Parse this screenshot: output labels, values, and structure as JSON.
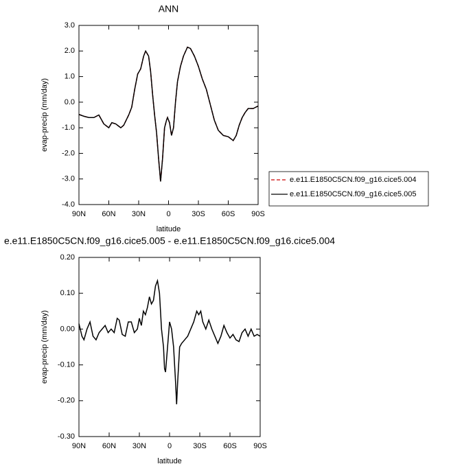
{
  "chart_data": [
    {
      "type": "line",
      "title": "ANN",
      "xlabel": "latitude",
      "ylabel": "evap-precip (mm/day)",
      "xlim": [
        90,
        -90
      ],
      "xticks": [
        {
          "value": 90,
          "label": "90N"
        },
        {
          "value": 60,
          "label": "60N"
        },
        {
          "value": 30,
          "label": "30N"
        },
        0,
        {
          "value": -30,
          "label": "30S"
        },
        {
          "value": -60,
          "label": "60S"
        },
        {
          "value": -90,
          "label": "90S"
        }
      ],
      "ylim": [
        -4,
        3
      ],
      "yticks": [
        {
          "value": -4,
          "label": "-4.0"
        },
        {
          "value": -3,
          "label": "-3.0"
        },
        {
          "value": -2,
          "label": "-2.0"
        },
        {
          "value": -1,
          "label": "-1.0"
        },
        {
          "value": 0,
          "label": "0.0"
        },
        {
          "value": 1,
          "label": "1.0"
        },
        {
          "value": 2,
          "label": "2.0"
        },
        {
          "value": 3,
          "label": "3.0"
        }
      ],
      "legend": "right",
      "x": [
        90,
        85,
        80,
        75,
        70,
        65,
        60,
        57,
        53,
        48,
        45,
        40,
        37,
        34,
        31,
        28,
        25,
        23,
        20,
        18,
        16,
        14,
        12,
        10,
        8,
        6,
        4,
        2,
        1,
        -1,
        -3,
        -5,
        -7,
        -9,
        -12,
        -15,
        -19,
        -22,
        -26,
        -30,
        -34,
        -38,
        -42,
        -46,
        -50,
        -55,
        -60,
        -65,
        -68,
        -71,
        -74,
        -77,
        -80,
        -85,
        -90
      ],
      "series": [
        {
          "name": "e.e11.E1850C5CN.f09_g16.cice5.004",
          "color": "#cc0000",
          "linestyle": "dashed",
          "values": [
            -0.48,
            -0.55,
            -0.6,
            -0.6,
            -0.5,
            -0.85,
            -1.0,
            -0.8,
            -0.85,
            -1.0,
            -0.9,
            -0.5,
            -0.2,
            0.5,
            1.1,
            1.3,
            1.8,
            2.0,
            1.8,
            1.2,
            0.3,
            -0.5,
            -1.2,
            -2.2,
            -3.1,
            -2.2,
            -1.0,
            -0.7,
            -0.6,
            -0.8,
            -1.3,
            -1.0,
            0.0,
            0.8,
            1.4,
            1.8,
            2.15,
            2.1,
            1.8,
            1.4,
            0.9,
            0.5,
            -0.1,
            -0.7,
            -1.1,
            -1.3,
            -1.35,
            -1.5,
            -1.3,
            -0.9,
            -0.6,
            -0.4,
            -0.25,
            -0.25,
            -0.15
          ]
        },
        {
          "name": "e.e11.E1850C5CN.f09_g16.cice5.005",
          "color": "#000000",
          "linestyle": "solid",
          "values": [
            -0.48,
            -0.55,
            -0.6,
            -0.6,
            -0.5,
            -0.85,
            -1.0,
            -0.8,
            -0.85,
            -1.0,
            -0.9,
            -0.5,
            -0.2,
            0.5,
            1.1,
            1.3,
            1.8,
            2.0,
            1.8,
            1.2,
            0.3,
            -0.5,
            -1.2,
            -2.2,
            -3.1,
            -2.2,
            -1.0,
            -0.7,
            -0.6,
            -0.8,
            -1.3,
            -1.0,
            0.0,
            0.8,
            1.4,
            1.8,
            2.15,
            2.1,
            1.8,
            1.4,
            0.9,
            0.5,
            -0.1,
            -0.7,
            -1.1,
            -1.3,
            -1.35,
            -1.5,
            -1.3,
            -0.9,
            -0.6,
            -0.4,
            -0.25,
            -0.25,
            -0.15
          ]
        }
      ]
    },
    {
      "type": "line",
      "title": "e.e11.E1850C5CN.f09_g16.cice5.005 - e.e11.E1850C5CN.f09_g16.cice5.004",
      "xlabel": "latitude",
      "ylabel": "evap-precip (mm/day)",
      "xlim": [
        90,
        -90
      ],
      "xticks": [
        {
          "value": 90,
          "label": "90N"
        },
        {
          "value": 60,
          "label": "60N"
        },
        {
          "value": 30,
          "label": "30N"
        },
        0,
        {
          "value": -30,
          "label": "30S"
        },
        {
          "value": -60,
          "label": "60S"
        },
        {
          "value": -90,
          "label": "90S"
        }
      ],
      "ylim": [
        -0.3,
        0.2
      ],
      "yticks": [
        {
          "value": -0.3,
          "label": "-0.30"
        },
        {
          "value": -0.2,
          "label": "-0.20"
        },
        {
          "value": -0.1,
          "label": "-0.10"
        },
        {
          "value": 0,
          "label": "0.00"
        },
        {
          "value": 0.1,
          "label": "0.10"
        },
        {
          "value": 0.2,
          "label": "0.20"
        }
      ],
      "color": "#000000",
      "x": [
        90,
        87,
        85,
        82,
        79,
        76,
        73,
        70,
        67,
        64,
        61,
        58,
        55,
        52,
        50,
        47,
        44,
        41,
        38,
        35,
        32,
        30,
        28,
        26,
        24,
        22,
        20,
        18,
        16,
        14,
        12,
        10,
        8,
        6,
        5,
        4,
        2,
        0,
        -2,
        -4,
        -6,
        -7,
        -8,
        -10,
        -12,
        -15,
        -18,
        -21,
        -24,
        -27,
        -29,
        -31,
        -33,
        -36,
        -39,
        -42,
        -45,
        -48,
        -51,
        -54,
        -57,
        -60,
        -63,
        -66,
        -69,
        -72,
        -75,
        -78,
        -81,
        -84,
        -87,
        -90
      ],
      "values": [
        0.015,
        -0.02,
        -0.03,
        0.0,
        0.02,
        -0.02,
        -0.03,
        -0.01,
        0.0,
        0.01,
        -0.01,
        0.0,
        -0.01,
        0.03,
        0.025,
        -0.015,
        -0.02,
        0.02,
        0.02,
        -0.01,
        0.0,
        0.03,
        0.01,
        0.05,
        0.04,
        0.06,
        0.09,
        0.07,
        0.08,
        0.12,
        0.135,
        0.1,
        0.0,
        -0.05,
        -0.11,
        -0.12,
        -0.05,
        0.02,
        0.0,
        -0.05,
        -0.15,
        -0.21,
        -0.15,
        -0.05,
        -0.04,
        -0.03,
        -0.02,
        0.0,
        0.02,
        0.05,
        0.04,
        0.05,
        0.02,
        0.0,
        0.025,
        0.0,
        -0.02,
        -0.04,
        -0.02,
        0.01,
        -0.01,
        -0.025,
        -0.015,
        -0.03,
        -0.035,
        -0.01,
        0.0,
        -0.02,
        0.0,
        -0.02,
        -0.015,
        -0.02
      ]
    }
  ]
}
